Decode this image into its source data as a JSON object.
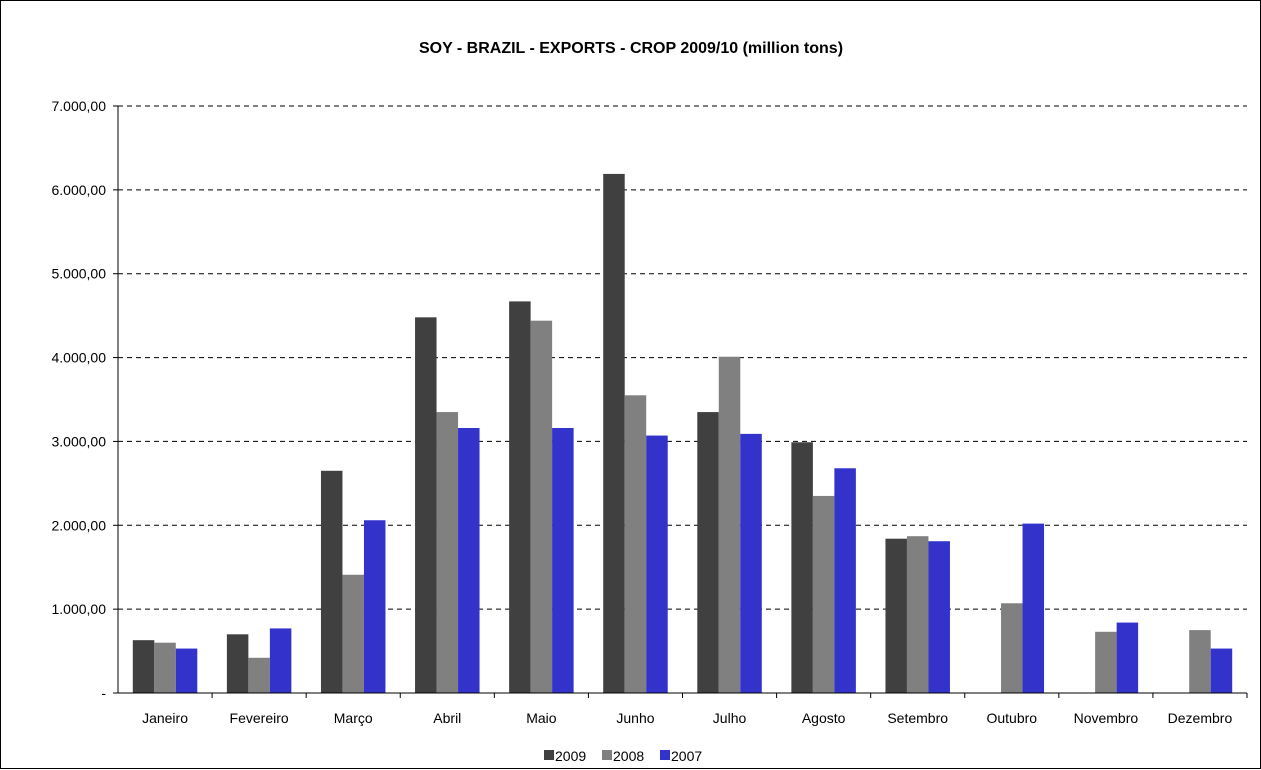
{
  "chart_data": {
    "type": "bar",
    "title": "SOY - BRAZIL - EXPORTS - CROP 2009/10 (million tons)",
    "xlabel": "",
    "ylabel": "",
    "ylim": [
      0,
      7000
    ],
    "yticks": [
      0,
      1000,
      2000,
      3000,
      4000,
      5000,
      6000,
      7000
    ],
    "ytick_labels": [
      "-",
      "1.000,00",
      "2.000,00",
      "3.000,00",
      "4.000,00",
      "5.000,00",
      "6.000,00",
      "7.000,00"
    ],
    "categories": [
      "Janeiro",
      "Fevereiro",
      "Março",
      "Abril",
      "Maio",
      "Junho",
      "Julho",
      "Agosto",
      "Setembro",
      "Outubro",
      "Novembro",
      "Dezembro"
    ],
    "series": [
      {
        "name": "2009",
        "color": "#404040",
        "values": [
          630,
          700,
          2650,
          4480,
          4670,
          6190,
          3350,
          2990,
          1840,
          null,
          null,
          null
        ]
      },
      {
        "name": "2008",
        "color": "#808080",
        "values": [
          600,
          420,
          1410,
          3350,
          4440,
          3550,
          4010,
          2350,
          1870,
          1070,
          730,
          750
        ]
      },
      {
        "name": "2007",
        "color": "#3333cc",
        "values": [
          530,
          770,
          2060,
          3160,
          3160,
          3070,
          3090,
          2680,
          1810,
          2020,
          840,
          530
        ]
      }
    ],
    "grid": true,
    "grid_style": "dashed",
    "legend_position": "bottom"
  }
}
